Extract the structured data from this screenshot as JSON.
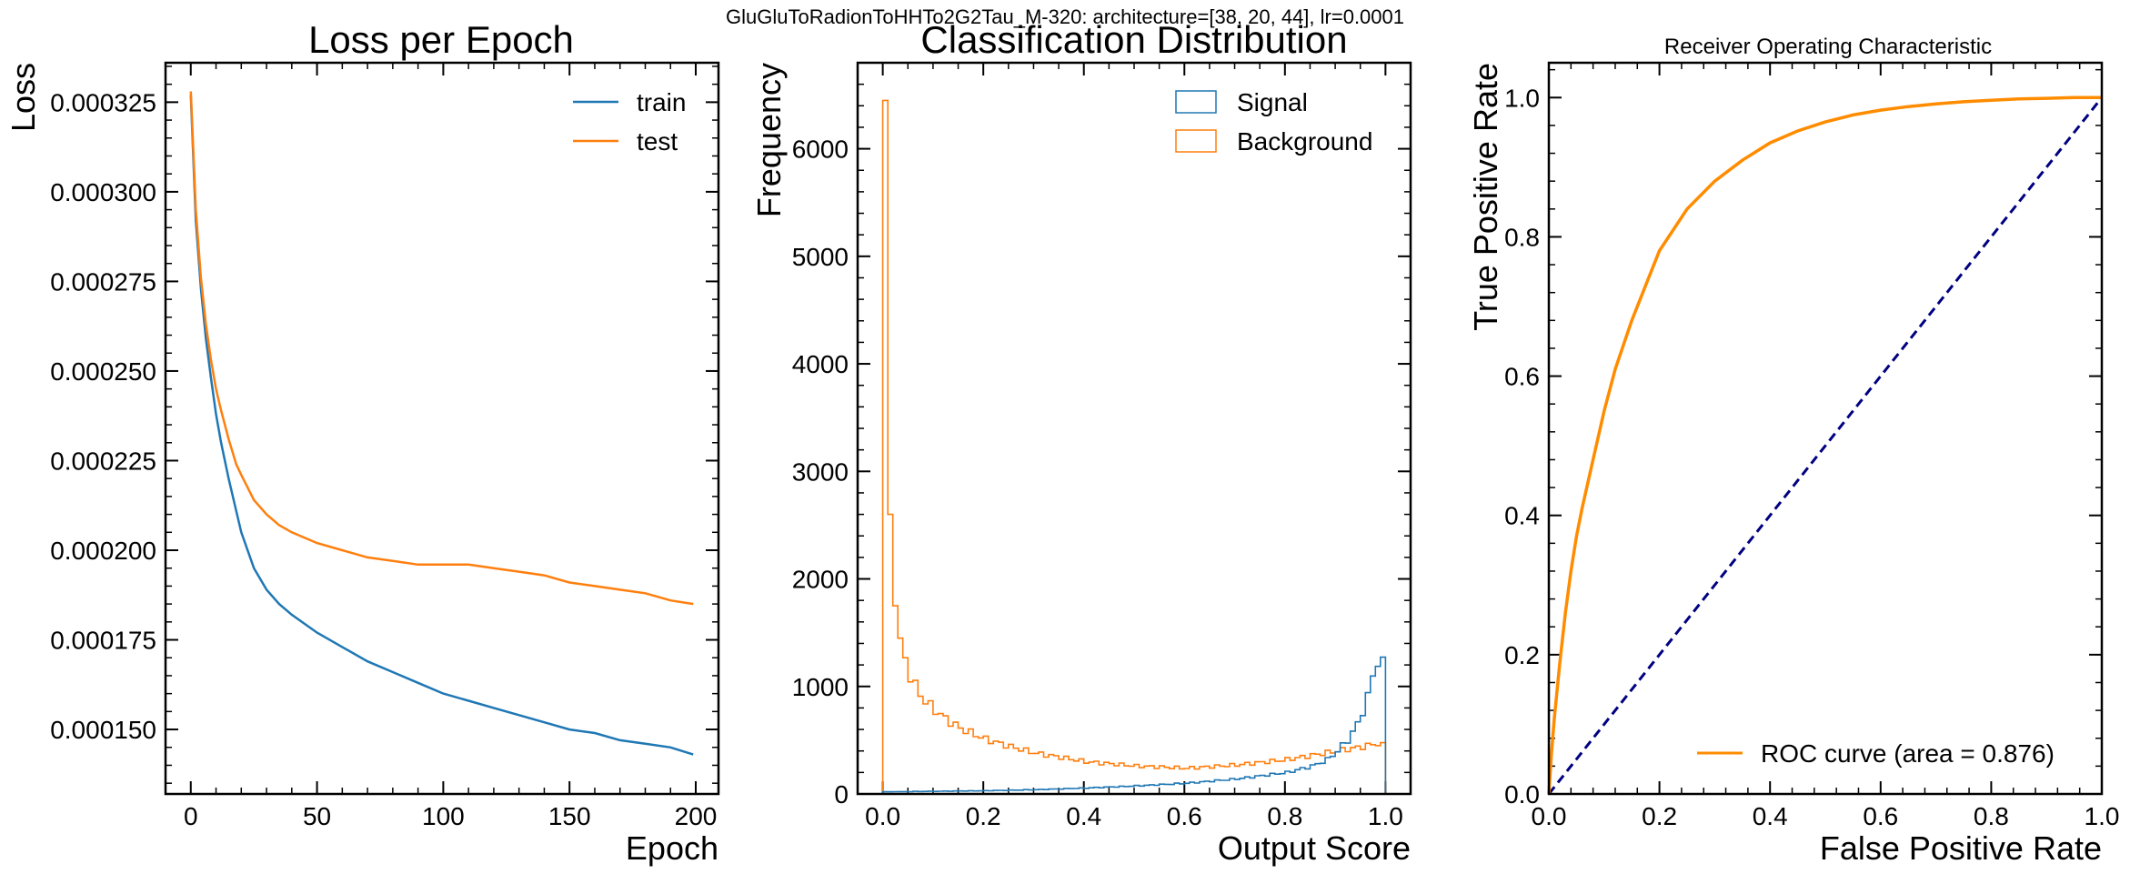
{
  "suptitle": "GluGluToRadionToHHTo2G2Tau_M-320: architecture=[38, 20, 44], lr=0.0001",
  "colors": {
    "train": "#1f77b4",
    "test": "#ff7f0e",
    "signal": "#1f77b4",
    "background": "#ff7f0e",
    "roc": "#ff8c00",
    "diag": "#000080"
  },
  "chart_data": [
    {
      "type": "line",
      "title": "Loss per Epoch",
      "xlabel": "Epoch",
      "ylabel": "Loss",
      "xlim": [
        -10,
        209
      ],
      "ylim": [
        0.000132,
        0.000336
      ],
      "xticks": [
        0,
        50,
        100,
        150,
        200
      ],
      "xtick_labels": [
        "0",
        "50",
        "100",
        "150",
        "200"
      ],
      "yticks": [
        0.00015,
        0.000175,
        0.0002,
        0.000225,
        0.00025,
        0.000275,
        0.0003,
        0.000325
      ],
      "ytick_labels": [
        "0.000150",
        "0.000175",
        "0.000200",
        "0.000225",
        "0.000250",
        "0.000275",
        "0.000300",
        "0.000325"
      ],
      "legend_position": "top-right",
      "grid": false,
      "series": [
        {
          "name": "train",
          "x": [
            0,
            2,
            4,
            6,
            8,
            10,
            12,
            15,
            18,
            20,
            25,
            30,
            35,
            40,
            50,
            60,
            70,
            80,
            90,
            100,
            110,
            120,
            130,
            140,
            150,
            160,
            170,
            180,
            190,
            199
          ],
          "values": [
            0.000327,
            0.000292,
            0.000273,
            0.000259,
            0.000248,
            0.000238,
            0.00023,
            0.00022,
            0.000211,
            0.000205,
            0.000195,
            0.000189,
            0.000185,
            0.000182,
            0.000177,
            0.000173,
            0.000169,
            0.000166,
            0.000163,
            0.00016,
            0.000158,
            0.000156,
            0.000154,
            0.000152,
            0.00015,
            0.000149,
            0.000147,
            0.000146,
            0.000145,
            0.000143
          ]
        },
        {
          "name": "test",
          "x": [
            0,
            2,
            4,
            6,
            8,
            10,
            12,
            15,
            18,
            20,
            25,
            30,
            35,
            40,
            50,
            60,
            70,
            80,
            90,
            100,
            110,
            120,
            130,
            140,
            150,
            160,
            170,
            180,
            190,
            199
          ],
          "values": [
            0.000328,
            0.000295,
            0.000276,
            0.000263,
            0.000253,
            0.000245,
            0.000239,
            0.000231,
            0.000224,
            0.000221,
            0.000214,
            0.00021,
            0.000207,
            0.000205,
            0.000202,
            0.0002,
            0.000198,
            0.000197,
            0.000196,
            0.000196,
            0.000196,
            0.000195,
            0.000194,
            0.000193,
            0.000191,
            0.00019,
            0.000189,
            0.000188,
            0.000186,
            0.000185
          ]
        }
      ]
    },
    {
      "type": "histogram",
      "title": "Classification Distribution",
      "xlabel": "Output Score",
      "ylabel": "Frequency",
      "xlim": [
        -0.05,
        1.05
      ],
      "ylim": [
        0,
        6800
      ],
      "xticks": [
        0,
        0.2,
        0.4,
        0.6,
        0.8,
        1.0
      ],
      "xtick_labels": [
        "0.0",
        "0.2",
        "0.4",
        "0.6",
        "0.8",
        "1.0"
      ],
      "yticks": [
        0,
        1000,
        2000,
        3000,
        4000,
        5000,
        6000
      ],
      "ytick_labels": [
        "0",
        "1000",
        "2000",
        "3000",
        "4000",
        "5000",
        "6000"
      ],
      "legend_position": "top-right",
      "bin_width": 0.01,
      "series": [
        {
          "name": "Signal",
          "anchors_x": [
            0.0,
            0.1,
            0.2,
            0.3,
            0.4,
            0.5,
            0.6,
            0.7,
            0.8,
            0.85,
            0.88,
            0.9,
            0.92,
            0.94,
            0.96,
            0.97,
            0.98,
            0.99
          ],
          "anchors_y": [
            20,
            25,
            30,
            40,
            55,
            75,
            100,
            140,
            200,
            260,
            320,
            400,
            500,
            650,
            900,
            1100,
            1240,
            1200
          ]
        },
        {
          "name": "Background",
          "anchors_x": [
            0.0,
            0.01,
            0.02,
            0.03,
            0.04,
            0.05,
            0.06,
            0.08,
            0.1,
            0.12,
            0.15,
            0.2,
            0.25,
            0.3,
            0.4,
            0.5,
            0.6,
            0.7,
            0.8,
            0.85,
            0.9,
            0.95,
            0.98,
            0.99
          ],
          "anchors_y": [
            6450,
            2600,
            1750,
            1400,
            1250,
            1100,
            1000,
            860,
            780,
            700,
            610,
            510,
            440,
            380,
            300,
            260,
            240,
            270,
            320,
            360,
            400,
            440,
            470,
            450
          ]
        }
      ]
    },
    {
      "type": "line",
      "title": "Receiver Operating Characteristic",
      "xlabel": "False Positive Rate",
      "ylabel": "True Positive Rate",
      "xlim": [
        0,
        1
      ],
      "ylim": [
        0,
        1.05
      ],
      "xticks": [
        0,
        0.2,
        0.4,
        0.6,
        0.8,
        1.0
      ],
      "xtick_labels": [
        "0.0",
        "0.2",
        "0.4",
        "0.6",
        "0.8",
        "1.0"
      ],
      "yticks": [
        0,
        0.2,
        0.4,
        0.6,
        0.8,
        1.0
      ],
      "ytick_labels": [
        "0.0",
        "0.2",
        "0.4",
        "0.6",
        "0.8",
        "1.0"
      ],
      "legend_position": "lower-right",
      "series": [
        {
          "name": "ROC curve (area = 0.876)",
          "x": [
            0,
            0.005,
            0.01,
            0.02,
            0.03,
            0.04,
            0.05,
            0.06,
            0.08,
            0.1,
            0.12,
            0.15,
            0.18,
            0.2,
            0.25,
            0.3,
            0.35,
            0.4,
            0.45,
            0.5,
            0.55,
            0.6,
            0.65,
            0.7,
            0.75,
            0.8,
            0.85,
            0.9,
            0.95,
            1.0
          ],
          "values": [
            0,
            0.06,
            0.11,
            0.19,
            0.26,
            0.32,
            0.37,
            0.41,
            0.48,
            0.55,
            0.61,
            0.68,
            0.74,
            0.78,
            0.84,
            0.88,
            0.91,
            0.935,
            0.952,
            0.965,
            0.975,
            0.982,
            0.987,
            0.991,
            0.994,
            0.996,
            0.998,
            0.999,
            1.0,
            1.0
          ]
        },
        {
          "name": "",
          "style": "dashed",
          "x": [
            0,
            1
          ],
          "values": [
            0,
            1
          ]
        }
      ]
    }
  ]
}
